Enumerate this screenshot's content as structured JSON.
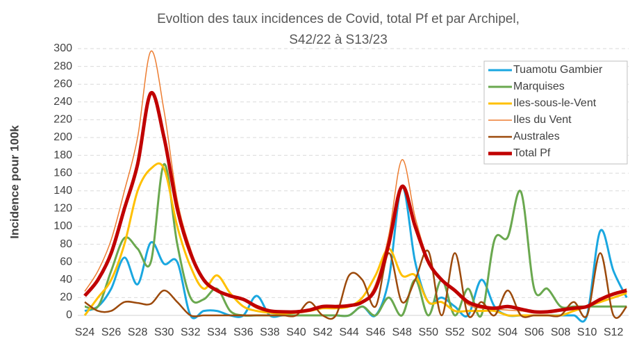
{
  "chart_data": {
    "type": "line",
    "title": "Evoltion des taux incidences de Covid, total  Pf et par Archipel,",
    "subtitle": "S42/22 à S13/23",
    "y_label": "Incidence pour 100k",
    "categories": [
      "S24",
      null,
      "S26",
      null,
      "S28",
      null,
      "S30",
      null,
      "S32",
      null,
      "S34",
      null,
      "S36",
      null,
      "S38",
      null,
      "S40",
      null,
      "S42",
      null,
      "S44",
      null,
      "S46",
      null,
      "S48",
      null,
      "S50",
      null,
      "S52",
      null,
      "S02",
      null,
      "S04",
      null,
      "S06",
      null,
      "S08",
      null,
      "S10",
      null,
      "S12",
      null
    ],
    "series": [
      {
        "name": "Tuamotu Gambier",
        "color": "#1aa7e0",
        "width": 3,
        "values": [
          5,
          10,
          30,
          65,
          35,
          82,
          58,
          60,
          0,
          5,
          5,
          0,
          0,
          22,
          0,
          0,
          0,
          0,
          0,
          0,
          0,
          10,
          0,
          40,
          145,
          60,
          15,
          20,
          10,
          0,
          40,
          10,
          0,
          0,
          0,
          0,
          0,
          0,
          0,
          95,
          50,
          20
        ]
      },
      {
        "name": "Marquises",
        "color": "#6aa84f",
        "width": 3,
        "values": [
          10,
          10,
          50,
          87,
          75,
          60,
          170,
          80,
          20,
          18,
          30,
          5,
          0,
          0,
          0,
          0,
          0,
          0,
          0,
          0,
          0,
          10,
          0,
          20,
          0,
          40,
          0,
          40,
          0,
          30,
          0,
          85,
          88,
          139,
          30,
          30,
          10,
          10,
          10,
          10,
          10,
          10
        ]
      },
      {
        "name": "Iles-sous-le-Vent",
        "color": "#ffc000",
        "width": 3,
        "values": [
          0,
          20,
          40,
          80,
          140,
          165,
          165,
          100,
          55,
          30,
          45,
          25,
          10,
          5,
          3,
          2,
          3,
          5,
          8,
          8,
          10,
          20,
          45,
          75,
          45,
          45,
          15,
          15,
          5,
          5,
          5,
          5,
          0,
          0,
          0,
          0,
          0,
          5,
          10,
          15,
          20,
          25
        ]
      },
      {
        "name": "Iles du Vent",
        "color": "#ed7d31",
        "width": 1.5,
        "values": [
          27,
          50,
          85,
          140,
          200,
          297,
          230,
          130,
          75,
          40,
          28,
          22,
          17,
          8,
          4,
          3,
          3,
          5,
          9,
          9,
          10,
          14,
          35,
          90,
          175,
          110,
          62,
          40,
          27,
          12,
          8,
          7,
          6,
          5,
          3,
          3,
          5,
          7,
          9,
          17,
          24,
          30
        ]
      },
      {
        "name": "Australes",
        "color": "#9c4a0c",
        "width": 2.5,
        "values": [
          15,
          5,
          5,
          15,
          14,
          13,
          28,
          15,
          0,
          0,
          0,
          0,
          0,
          0,
          0,
          0,
          0,
          15,
          0,
          0,
          45,
          40,
          10,
          70,
          15,
          40,
          72,
          0,
          70,
          0,
          15,
          0,
          28,
          0,
          0,
          0,
          0,
          15,
          0,
          70,
          0,
          10
        ]
      },
      {
        "name": "Total Pf",
        "color": "#c00000",
        "width": 5,
        "values": [
          22,
          40,
          70,
          120,
          170,
          250,
          200,
          120,
          70,
          40,
          28,
          22,
          18,
          10,
          5,
          4,
          4,
          6,
          10,
          10,
          11,
          15,
          30,
          80,
          145,
          100,
          60,
          40,
          28,
          15,
          10,
          8,
          10,
          7,
          4,
          4,
          6,
          8,
          10,
          18,
          24,
          28
        ]
      }
    ],
    "ylim": [
      0,
      300
    ],
    "yticks": [
      0,
      20,
      40,
      60,
      80,
      100,
      120,
      140,
      160,
      180,
      200,
      220,
      240,
      260,
      280,
      300
    ],
    "grid": true,
    "legend": "top-right"
  }
}
